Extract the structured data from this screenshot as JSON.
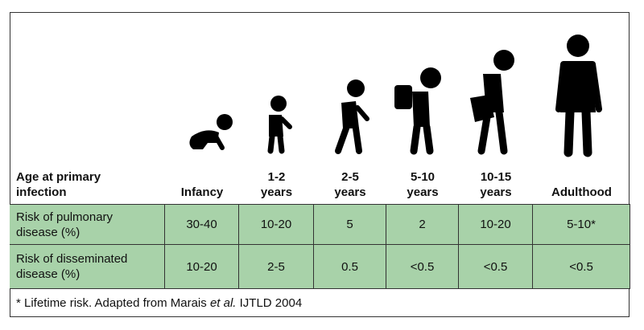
{
  "table": {
    "header": [
      [
        "Age at primary",
        "infection"
      ],
      [
        "Infancy"
      ],
      [
        "1-2",
        "years"
      ],
      [
        "2-5",
        "years"
      ],
      [
        "5-10",
        "years"
      ],
      [
        "10-15",
        "years"
      ],
      [
        "Adulthood"
      ]
    ],
    "rows": [
      [
        [
          "Risk of pulmonary",
          "disease (%)"
        ],
        "30-40",
        "10-20",
        "5",
        "2",
        "10-20",
        "5-10*"
      ],
      [
        [
          "Risk of disseminated",
          "disease (%)"
        ],
        "10-20",
        "2-5",
        "0.5",
        "<0.5",
        "<0.5",
        "<0.5"
      ]
    ]
  },
  "footnote": {
    "before": "* Lifetime risk. Adapted from Marais ",
    "italic": "et al.",
    "after": " IJTLD 2004"
  }
}
